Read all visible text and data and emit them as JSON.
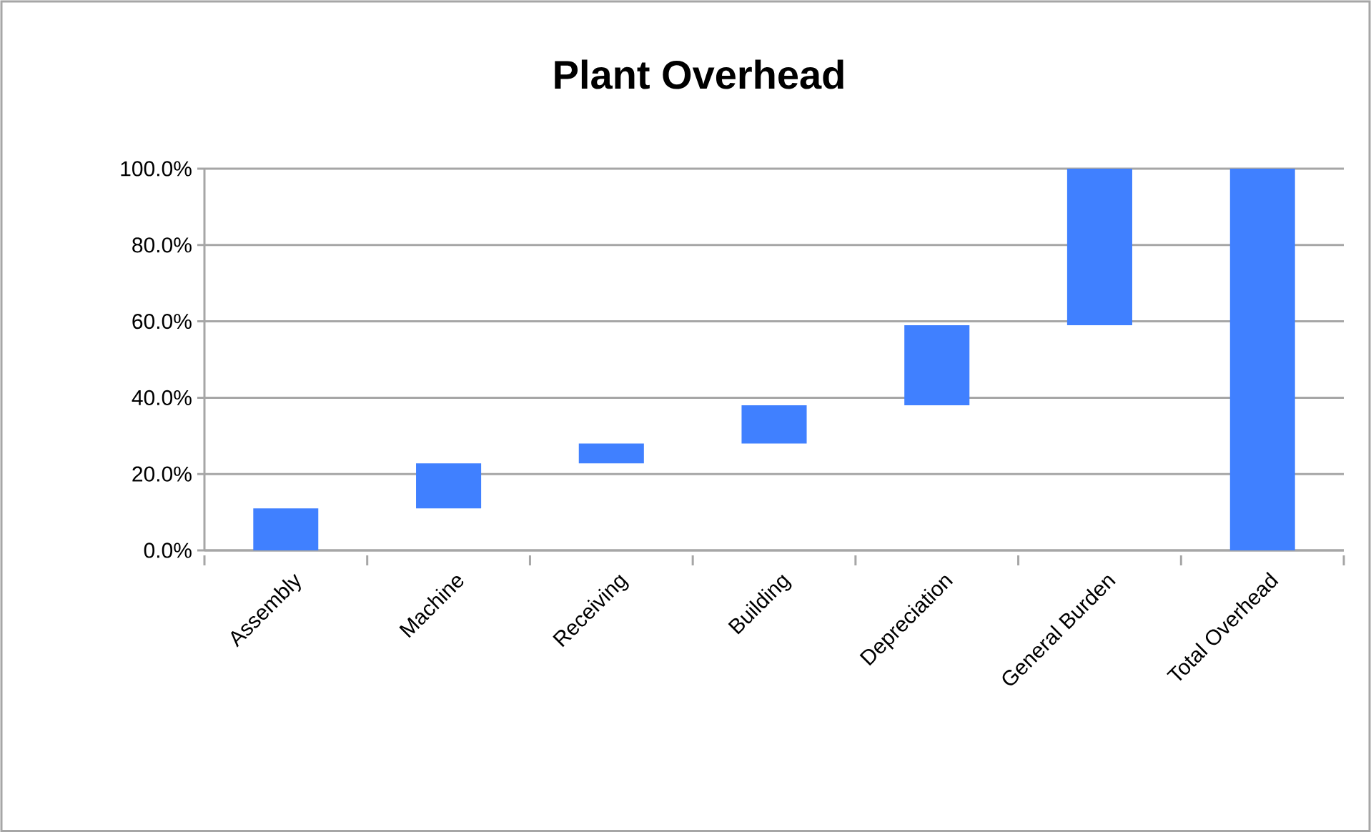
{
  "chart_data": {
    "type": "bar",
    "title": "Plant Overhead",
    "categories": [
      "Assembly",
      "Machine",
      "Receiving",
      "Building",
      "Depreciation",
      "General Burden",
      "Total Overhead"
    ],
    "base": [
      0,
      11,
      22.8,
      28,
      38,
      59,
      0
    ],
    "values": [
      11,
      11.8,
      5.2,
      10,
      21,
      41,
      100
    ],
    "color": "#4080ff",
    "ylim": [
      0,
      100
    ],
    "yticks": [
      {
        "value": 0,
        "label": "0.0%"
      },
      {
        "value": 20,
        "label": "20.0%"
      },
      {
        "value": 40,
        "label": "40.0%"
      },
      {
        "value": 60,
        "label": "60.0%"
      },
      {
        "value": 80,
        "label": "80.0%"
      },
      {
        "value": 100,
        "label": "100.0%"
      }
    ],
    "grid": "y"
  }
}
